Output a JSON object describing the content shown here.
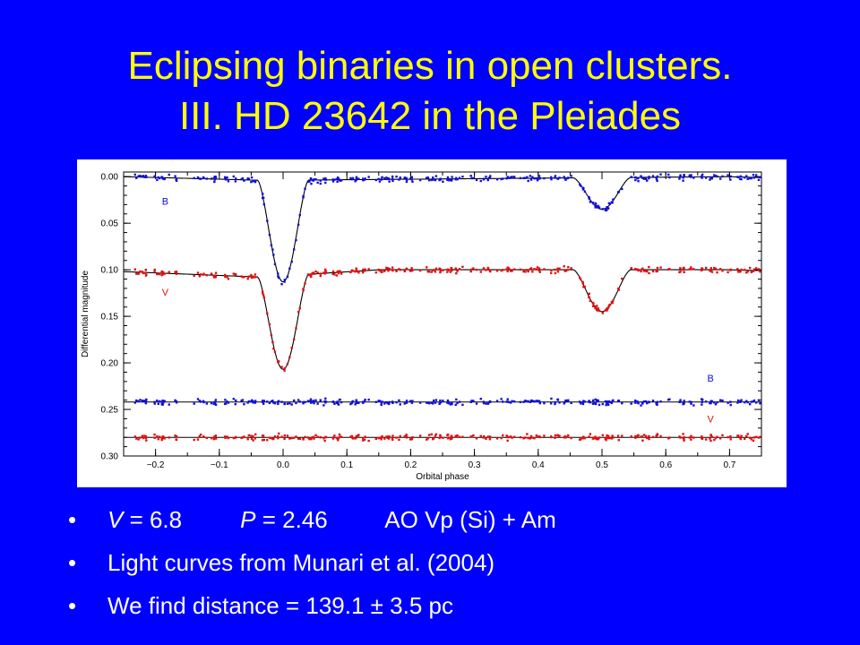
{
  "slide": {
    "title_line1": "Eclipsing binaries in open clusters.",
    "title_line2": "III. HD 23642 in the Pleiades",
    "bullet_char": "•",
    "bullets": [
      {
        "v_sym": "V",
        "v_rest": " = 6.8         ",
        "p_sym": "P",
        "p_rest": " = 2.46         AO Vp (Si) + Am"
      },
      {
        "text": "Light curves from Munari et al. (2004)"
      },
      {
        "text": "We find distance = 139.1 ± 3.5 pc"
      }
    ]
  },
  "chart_data": {
    "type": "scatter",
    "xlabel": "Orbital phase",
    "ylabel": "Differential magnitude",
    "xlim": [
      -0.25,
      0.75
    ],
    "ylim": [
      0.3,
      -0.005
    ],
    "y_inverted": true,
    "xticks": [
      -0.2,
      -0.1,
      0.0,
      0.1,
      0.2,
      0.3,
      0.4,
      0.5,
      0.6,
      0.7
    ],
    "xtick_labels": [
      "−0.2",
      "−0.1",
      "0.0",
      "0.1",
      "0.2",
      "0.3",
      "0.4",
      "0.5",
      "0.6",
      "0.7"
    ],
    "yticks": [
      0.0,
      0.05,
      0.1,
      0.15,
      0.2,
      0.25,
      0.3
    ],
    "ytick_labels": [
      "0.00",
      "0.05",
      "0.10",
      "0.15",
      "0.20",
      "0.25",
      "0.30"
    ],
    "grid": false,
    "colors": {
      "B": "#1010d8",
      "V": "#e01010",
      "model": "#000000"
    },
    "series": [
      {
        "name": "B",
        "kind": "light curve",
        "color": "#1010d8",
        "model": {
          "baseline": [
            [
              -0.25,
              0.0
            ],
            [
              -0.03,
              0.004
            ],
            [
              0.7,
              0.0
            ],
            [
              0.75,
              0.001
            ]
          ],
          "primary_eclipse": {
            "phase": 0.0,
            "mag": 0.113
          },
          "secondary_eclipse": {
            "phase": 0.5,
            "mag": 0.035
          }
        }
      },
      {
        "name": "V",
        "kind": "light curve",
        "color": "#e01010",
        "model": {
          "baseline": [
            [
              -0.25,
              0.102
            ],
            [
              -0.03,
              0.108
            ],
            [
              0.15,
              0.1
            ],
            [
              0.7,
              0.1
            ],
            [
              0.75,
              0.101
            ]
          ],
          "primary_eclipse": {
            "phase": 0.0,
            "mag": 0.207
          },
          "secondary_eclipse": {
            "phase": 0.5,
            "mag": 0.145
          }
        }
      },
      {
        "name": "B",
        "kind": "residuals",
        "color": "#1010d8",
        "offset": 0.242
      },
      {
        "name": "V",
        "kind": "residuals",
        "color": "#e01010",
        "offset": 0.28
      }
    ],
    "annotations": [
      {
        "text": "B",
        "x": -0.19,
        "y": 0.03,
        "color": "#1010d8"
      },
      {
        "text": "V",
        "x": -0.19,
        "y": 0.128,
        "color": "#e01010"
      },
      {
        "text": "B",
        "x": 0.665,
        "y": 0.22,
        "color": "#1010d8"
      },
      {
        "text": "V",
        "x": 0.665,
        "y": 0.264,
        "color": "#e01010"
      }
    ]
  }
}
